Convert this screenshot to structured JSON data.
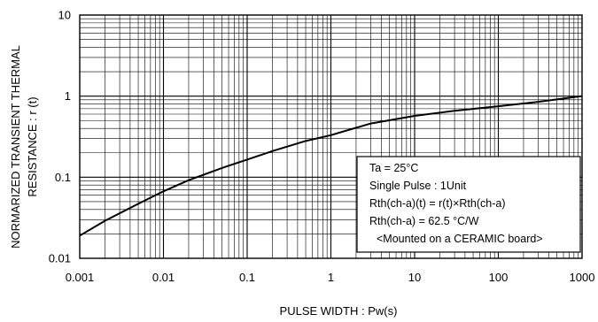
{
  "chart_data": {
    "type": "line",
    "title": "",
    "xlabel": "PULSE WIDTH : Pw(s)",
    "ylabel_lines": [
      "NORMARIZED TRANSIENT THERMAL",
      "RESISTANCE : r (t)"
    ],
    "x_scale": "log",
    "y_scale": "log",
    "xlim": [
      0.001,
      1000
    ],
    "ylim": [
      0.01,
      10
    ],
    "grid": true,
    "x_ticks": [
      {
        "value": 0.001,
        "label": "0.001"
      },
      {
        "value": 0.01,
        "label": "0.01"
      },
      {
        "value": 0.1,
        "label": "0.1"
      },
      {
        "value": 1,
        "label": "1"
      },
      {
        "value": 10,
        "label": "10"
      },
      {
        "value": 100,
        "label": "100"
      },
      {
        "value": 1000,
        "label": "1000"
      }
    ],
    "y_ticks": [
      {
        "value": 0.01,
        "label": "0.01"
      },
      {
        "value": 0.1,
        "label": "0.1"
      },
      {
        "value": 1,
        "label": "1"
      },
      {
        "value": 10,
        "label": "10"
      }
    ],
    "series": [
      {
        "x": [
          0.001,
          0.002,
          0.005,
          0.01,
          0.02,
          0.05,
          0.1,
          0.2,
          0.5,
          1,
          3,
          10,
          30,
          100,
          300,
          1000
        ],
        "y": [
          0.019,
          0.029,
          0.047,
          0.067,
          0.092,
          0.13,
          0.165,
          0.21,
          0.28,
          0.33,
          0.46,
          0.57,
          0.66,
          0.75,
          0.85,
          1.0
        ]
      }
    ],
    "annotation_lines": [
      "Ta = 25°C",
      "Single Pulse : 1Unit",
      "Rth(ch-a)(t) = r(t)×Rth(ch-a)",
      "Rth(ch-a) = 62.5 °C/W",
      "<Mounted on a CERAMIC board>"
    ],
    "annotation_placement": "bottom-right",
    "colors": {
      "line": "#000000",
      "grid": "#000000",
      "background": "#ffffff"
    }
  }
}
